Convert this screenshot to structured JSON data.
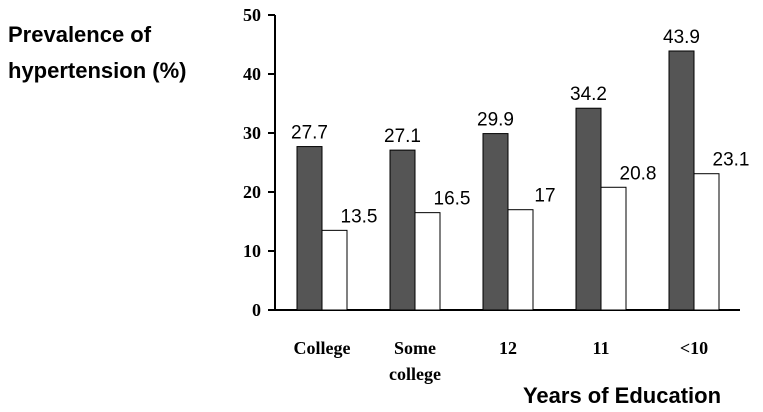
{
  "chart_data": {
    "type": "bar",
    "ylabel": [
      "Prevalence of",
      "hypertension (%)"
    ],
    "xlabel": "Years of Education",
    "categories": [
      [
        "College"
      ],
      [
        "Some",
        "college"
      ],
      [
        "12"
      ],
      [
        "11"
      ],
      [
        "<10"
      ]
    ],
    "ylim": [
      0,
      50
    ],
    "yticks": [
      0,
      10,
      20,
      30,
      40,
      50
    ],
    "grid": false,
    "legend": "none",
    "series": [
      {
        "values": [
          27.7,
          27.1,
          29.9,
          34.2,
          43.9
        ],
        "color": "#555555"
      },
      {
        "values": [
          13.5,
          16.5,
          17,
          20.8,
          23.1
        ],
        "color": "#ffffff"
      }
    ],
    "data_labels": [
      [
        "27.7",
        "27.1",
        "29.9",
        "34.2",
        "43.9"
      ],
      [
        "13.5",
        "16.5",
        "17",
        "20.8",
        "23.1"
      ]
    ]
  }
}
